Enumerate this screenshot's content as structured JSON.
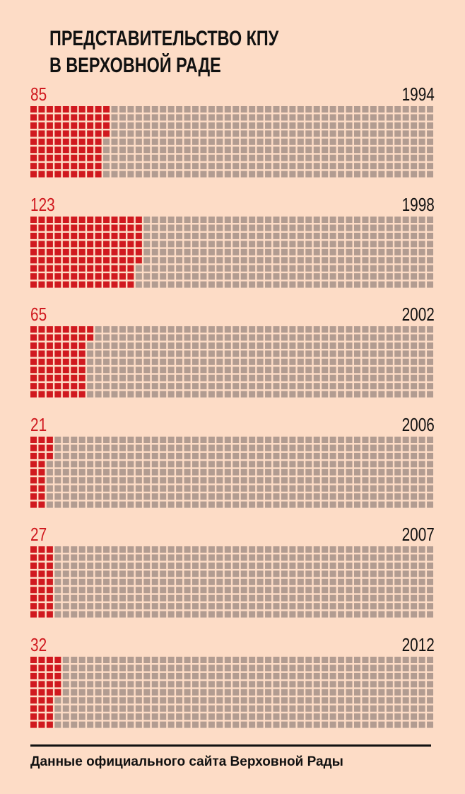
{
  "chart_data": {
    "type": "waffle",
    "title": [
      "ПРЕДСТАВИТЕЛЬСТВО КПУ",
      "В ВЕРХОВНОЙ РАДЕ"
    ],
    "total": 450,
    "rows": 9,
    "columns": 50,
    "series": [
      {
        "year": "1994",
        "value": 85,
        "label": "85"
      },
      {
        "year": "1998",
        "value": 123,
        "label": "123"
      },
      {
        "year": "2002",
        "value": 65,
        "label": "65"
      },
      {
        "year": "2006",
        "value": 21,
        "label": "21"
      },
      {
        "year": "2007",
        "value": 27,
        "label": "27"
      },
      {
        "year": "2012",
        "value": 32,
        "label": "32"
      }
    ],
    "colors": {
      "filled": "#d0191f",
      "empty": "#b29c91",
      "background": "#fddcc6"
    },
    "source": "Данные официального сайта Верховной Рады"
  }
}
